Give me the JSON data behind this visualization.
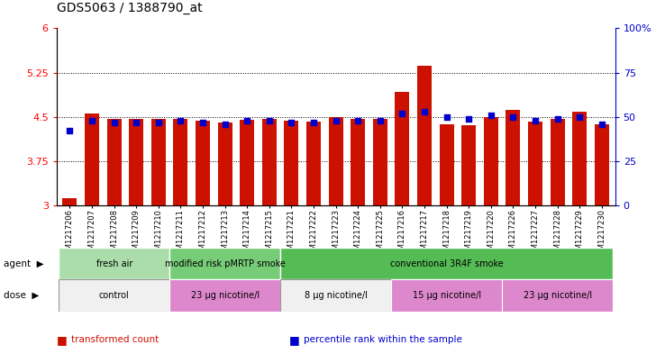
{
  "title": "GDS5063 / 1388790_at",
  "samples": [
    "GSM1217206",
    "GSM1217207",
    "GSM1217208",
    "GSM1217209",
    "GSM1217210",
    "GSM1217211",
    "GSM1217212",
    "GSM1217213",
    "GSM1217214",
    "GSM1217215",
    "GSM1217221",
    "GSM1217222",
    "GSM1217223",
    "GSM1217224",
    "GSM1217225",
    "GSM1217216",
    "GSM1217217",
    "GSM1217218",
    "GSM1217219",
    "GSM1217220",
    "GSM1217226",
    "GSM1217227",
    "GSM1217228",
    "GSM1217229",
    "GSM1217230"
  ],
  "bar_values": [
    3.12,
    4.56,
    4.47,
    4.46,
    4.47,
    4.47,
    4.43,
    4.4,
    4.45,
    4.46,
    4.43,
    4.42,
    4.5,
    4.46,
    4.46,
    4.92,
    5.37,
    4.37,
    4.36,
    4.5,
    4.62,
    4.42,
    4.47,
    4.58,
    4.37
  ],
  "percentile_values": [
    42,
    48,
    47,
    47,
    47,
    48,
    47,
    46,
    48,
    48,
    47,
    47,
    48,
    48,
    48,
    52,
    53,
    50,
    49,
    51,
    50,
    48,
    49,
    50,
    46
  ],
  "bar_color": "#cc1100",
  "dot_color": "#0000cc",
  "ylim_left": [
    3,
    6
  ],
  "ylim_right": [
    0,
    100
  ],
  "yticks_left": [
    3,
    3.75,
    4.5,
    5.25,
    6
  ],
  "yticks_right": [
    0,
    25,
    50,
    75,
    100
  ],
  "yticklabels_right": [
    "0",
    "25",
    "50",
    "75",
    "100%"
  ],
  "agent_groups": [
    {
      "label": "fresh air",
      "start": 0,
      "end": 5,
      "color": "#aaddaa"
    },
    {
      "label": "modified risk pMRTP smoke",
      "start": 5,
      "end": 10,
      "color": "#77cc77"
    },
    {
      "label": "conventional 3R4F smoke",
      "start": 10,
      "end": 25,
      "color": "#55bb55"
    }
  ],
  "dose_groups": [
    {
      "label": "control",
      "start": 0,
      "end": 5,
      "color": "#f0f0f0"
    },
    {
      "label": "23 μg nicotine/l",
      "start": 5,
      "end": 10,
      "color": "#dd88cc"
    },
    {
      "label": "8 μg nicotine/l",
      "start": 10,
      "end": 15,
      "color": "#f0f0f0"
    },
    {
      "label": "15 μg nicotine/l",
      "start": 15,
      "end": 20,
      "color": "#dd88cc"
    },
    {
      "label": "23 μg nicotine/l",
      "start": 20,
      "end": 25,
      "color": "#dd88cc"
    }
  ],
  "legend_items": [
    {
      "label": "transformed count",
      "color": "#cc1100"
    },
    {
      "label": "percentile rank within the sample",
      "color": "#0000cc"
    }
  ],
  "grid_lines": [
    3.75,
    4.5,
    5.25
  ]
}
